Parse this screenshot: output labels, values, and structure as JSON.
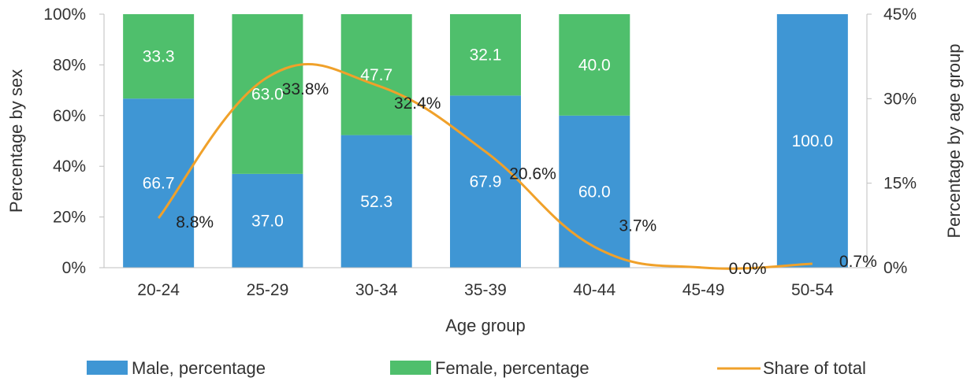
{
  "chart_data": {
    "type": "bar",
    "stacked": true,
    "categories": [
      "20-24",
      "25-29",
      "30-34",
      "35-39",
      "40-44",
      "45-49",
      "50-54"
    ],
    "series": [
      {
        "name": "Male, percentage",
        "type": "bar",
        "axis": "left",
        "color": "#3f96d4",
        "values": [
          66.7,
          37.0,
          52.3,
          67.9,
          60.0,
          null,
          100.0
        ],
        "labels": [
          "66.7",
          "37.0",
          "52.3",
          "67.9",
          "60.0",
          "",
          "100.0"
        ]
      },
      {
        "name": "Female, percentage",
        "type": "bar",
        "axis": "left",
        "color": "#4fbf6c",
        "values": [
          33.3,
          63.0,
          47.7,
          32.1,
          40.0,
          null,
          null
        ],
        "labels": [
          "33.3",
          "63.0",
          "47.7",
          "32.1",
          "40.0",
          "",
          ""
        ]
      },
      {
        "name": "Share of total",
        "type": "line",
        "axis": "right",
        "color": "#f0a12a",
        "smooth": true,
        "values": [
          8.8,
          33.8,
          32.4,
          20.6,
          3.7,
          0.0,
          0.7
        ],
        "labels": [
          "8.8%",
          "33.8%",
          "32.4%",
          "20.6%",
          "3.7%",
          "0.0%",
          "0.7%"
        ]
      }
    ],
    "xlabel": "Age group",
    "ylabel": "Percentage by sex",
    "y2label": "Percentage by age group",
    "ylim": [
      0,
      100
    ],
    "yticks": [
      "0%",
      "20%",
      "40%",
      "60%",
      "80%",
      "100%"
    ],
    "y2lim": [
      0,
      45
    ],
    "y2ticks": [
      "0%",
      "15%",
      "30%",
      "45%"
    ],
    "legend_position": "bottom",
    "grid": false
  }
}
